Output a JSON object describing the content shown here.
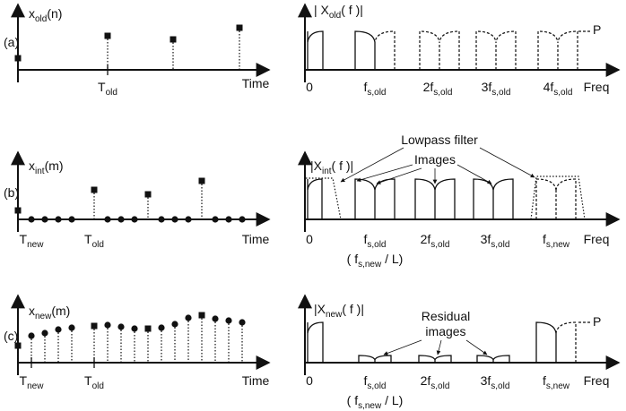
{
  "panels": [
    {
      "tag": "(a)",
      "signal": {
        "main": "x",
        "sub": "old",
        "tail": "(n)"
      },
      "time_ticks": [
        {
          "main": "T",
          "sub": "old"
        }
      ],
      "time": "Time",
      "spectrum": {
        "main": "| X",
        "sub": "old",
        "tail": "( f )|"
      },
      "freq_ticks": [
        {
          "main": "0"
        },
        {
          "main": "f",
          "sub": "s,old"
        },
        {
          "main": "2f",
          "sub": "s,old"
        },
        {
          "main": "3f",
          "sub": "s,old"
        },
        {
          "main": "4f",
          "sub": "s,old"
        }
      ],
      "freq": "Freq",
      "level": "P"
    },
    {
      "tag": "(b)",
      "signal": {
        "main": "x",
        "sub": "int",
        "tail": "(m)"
      },
      "time_ticks": [
        {
          "main": "T",
          "sub": "new"
        },
        {
          "main": "T",
          "sub": "old"
        }
      ],
      "time": "Time",
      "spectrum": {
        "main": "|X",
        "sub": "int",
        "tail": "( f )|"
      },
      "freq_ticks": [
        {
          "main": "0"
        },
        {
          "main": "f",
          "sub": "s,old"
        },
        {
          "main": "2f",
          "sub": "s,old"
        },
        {
          "main": "3f",
          "sub": "s,old"
        },
        {
          "main": "f",
          "sub": "s,new"
        }
      ],
      "freq": "Freq",
      "note": {
        "main": "( f",
        "sub": "s,new",
        "tail": " / L)"
      },
      "filter": "Lowpass filter",
      "images": "Images"
    },
    {
      "tag": "(c)",
      "signal": {
        "main": "x",
        "sub": "new",
        "tail": "(m)"
      },
      "time_ticks": [
        {
          "main": "T",
          "sub": "new"
        },
        {
          "main": "T",
          "sub": "old"
        }
      ],
      "time": "Time",
      "spectrum": {
        "main": "|X",
        "sub": "new",
        "tail": "( f )|"
      },
      "freq_ticks": [
        {
          "main": "0"
        },
        {
          "main": "f",
          "sub": "s,old"
        },
        {
          "main": "2f",
          "sub": "s,old"
        },
        {
          "main": "3f",
          "sub": "s,old"
        },
        {
          "main": "f",
          "sub": "s,new"
        }
      ],
      "freq": "Freq",
      "note": {
        "main": "( f",
        "sub": "s,new",
        "tail": " / L)"
      },
      "residual": [
        "Residual",
        "images"
      ],
      "level": "P"
    }
  ]
}
